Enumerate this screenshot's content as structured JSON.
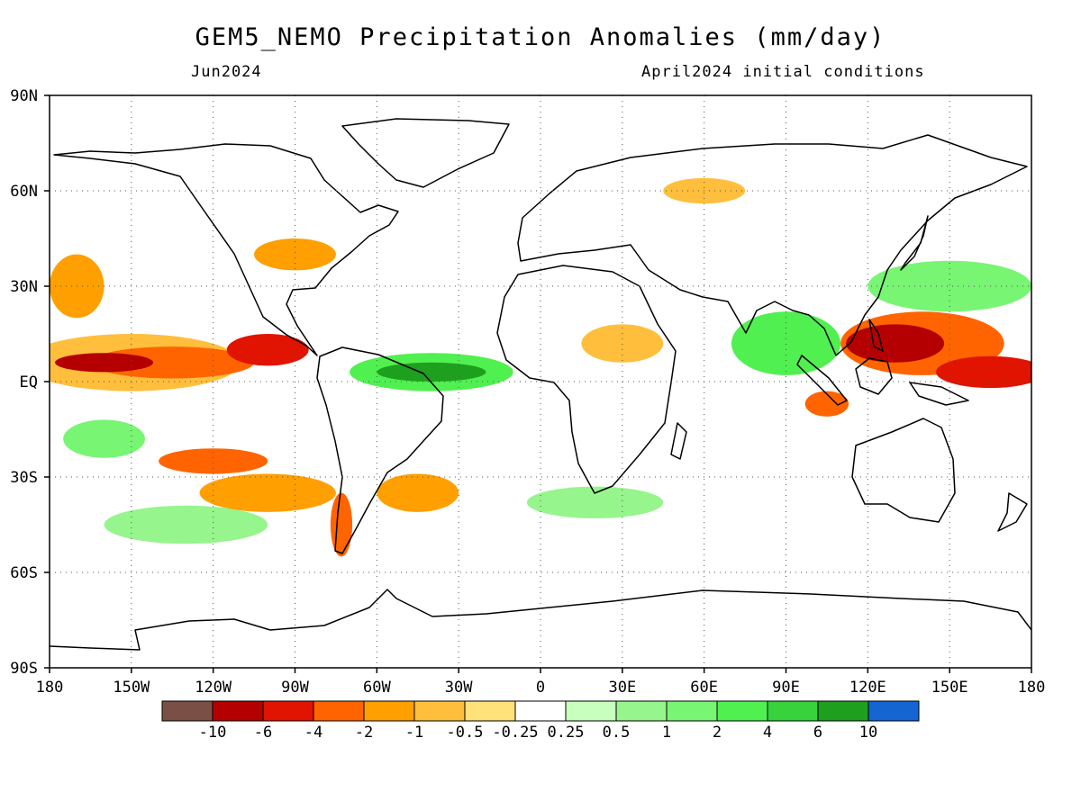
{
  "header": {
    "title": "GEM5_NEMO Precipitation Anomalies (mm/day)",
    "valid_month": "Jun2024",
    "initial_conditions": "April2024 initial conditions"
  },
  "map": {
    "projection": "equirectangular",
    "lon_range": [
      -180,
      180
    ],
    "lat_range": [
      -90,
      90
    ],
    "lon_ticks": [
      {
        "value": -180,
        "label": "180"
      },
      {
        "value": -150,
        "label": "150W"
      },
      {
        "value": -120,
        "label": "120W"
      },
      {
        "value": -90,
        "label": "90W"
      },
      {
        "value": -60,
        "label": "60W"
      },
      {
        "value": -30,
        "label": "30W"
      },
      {
        "value": 0,
        "label": "0"
      },
      {
        "value": 30,
        "label": "30E"
      },
      {
        "value": 60,
        "label": "60E"
      },
      {
        "value": 90,
        "label": "90E"
      },
      {
        "value": 120,
        "label": "120E"
      },
      {
        "value": 150,
        "label": "150E"
      },
      {
        "value": 180,
        "label": "180"
      }
    ],
    "lat_ticks": [
      {
        "value": 90,
        "label": "90N"
      },
      {
        "value": 60,
        "label": "60N"
      },
      {
        "value": 30,
        "label": "30N"
      },
      {
        "value": 0,
        "label": "EQ"
      },
      {
        "value": -30,
        "label": "30S"
      },
      {
        "value": -60,
        "label": "60S"
      },
      {
        "value": -90,
        "label": "90S"
      }
    ],
    "grid": true,
    "anomaly_regions": [
      {
        "lon": -160,
        "lat": 6,
        "rx": 18,
        "ry": 3,
        "level": "-6"
      },
      {
        "lon": -135,
        "lat": 6,
        "rx": 30,
        "ry": 5,
        "level": "-2"
      },
      {
        "lon": -100,
        "lat": 10,
        "rx": 15,
        "ry": 5,
        "level": "-4"
      },
      {
        "lon": -150,
        "lat": 6,
        "rx": 40,
        "ry": 9,
        "level": "-0.5"
      },
      {
        "lon": -40,
        "lat": 3,
        "rx": 20,
        "ry": 3,
        "level": "6"
      },
      {
        "lon": -40,
        "lat": 3,
        "rx": 30,
        "ry": 6,
        "level": "2"
      },
      {
        "lon": 130,
        "lat": 12,
        "rx": 18,
        "ry": 6,
        "level": "-6"
      },
      {
        "lon": 140,
        "lat": 12,
        "rx": 30,
        "ry": 10,
        "level": "-2"
      },
      {
        "lon": 165,
        "lat": 3,
        "rx": 20,
        "ry": 5,
        "level": "-4"
      },
      {
        "lon": 105,
        "lat": -7,
        "rx": 8,
        "ry": 4,
        "level": "-2"
      },
      {
        "lon": 90,
        "lat": 12,
        "rx": 20,
        "ry": 10,
        "level": "2"
      },
      {
        "lon": 150,
        "lat": 30,
        "rx": 30,
        "ry": 8,
        "level": "1"
      },
      {
        "lon": -120,
        "lat": -25,
        "rx": 20,
        "ry": 4,
        "level": "-2"
      },
      {
        "lon": -100,
        "lat": -35,
        "rx": 25,
        "ry": 6,
        "level": "-1"
      },
      {
        "lon": -73,
        "lat": -45,
        "rx": 4,
        "ry": 10,
        "level": "-2"
      },
      {
        "lon": -160,
        "lat": -18,
        "rx": 15,
        "ry": 6,
        "level": "1"
      },
      {
        "lon": -130,
        "lat": -45,
        "rx": 30,
        "ry": 6,
        "level": "0.5"
      },
      {
        "lon": -45,
        "lat": -35,
        "rx": 15,
        "ry": 6,
        "level": "-1"
      },
      {
        "lon": 20,
        "lat": -38,
        "rx": 25,
        "ry": 5,
        "level": "0.5"
      },
      {
        "lon": -90,
        "lat": 40,
        "rx": 15,
        "ry": 5,
        "level": "-1"
      },
      {
        "lon": -170,
        "lat": 30,
        "rx": 10,
        "ry": 10,
        "level": "-1"
      },
      {
        "lon": 30,
        "lat": 12,
        "rx": 15,
        "ry": 6,
        "level": "-0.5"
      },
      {
        "lon": 60,
        "lat": 60,
        "rx": 15,
        "ry": 4,
        "level": "-0.5"
      }
    ]
  },
  "colorbar": {
    "colors": [
      "#7a4f46",
      "#b40000",
      "#e01400",
      "#ff6400",
      "#ff9f00",
      "#ffbe3c",
      "#ffe27a",
      "#ffffff",
      "#c8ffbe",
      "#96f58c",
      "#78f573",
      "#50f050",
      "#37d23c",
      "#1ea01e",
      "#1464d2"
    ],
    "labels": [
      "-10",
      "-6",
      "-4",
      "-2",
      "-1",
      "-0.5",
      "-0.25",
      "0.25",
      "0.5",
      "1",
      "2",
      "4",
      "6",
      "10"
    ]
  }
}
